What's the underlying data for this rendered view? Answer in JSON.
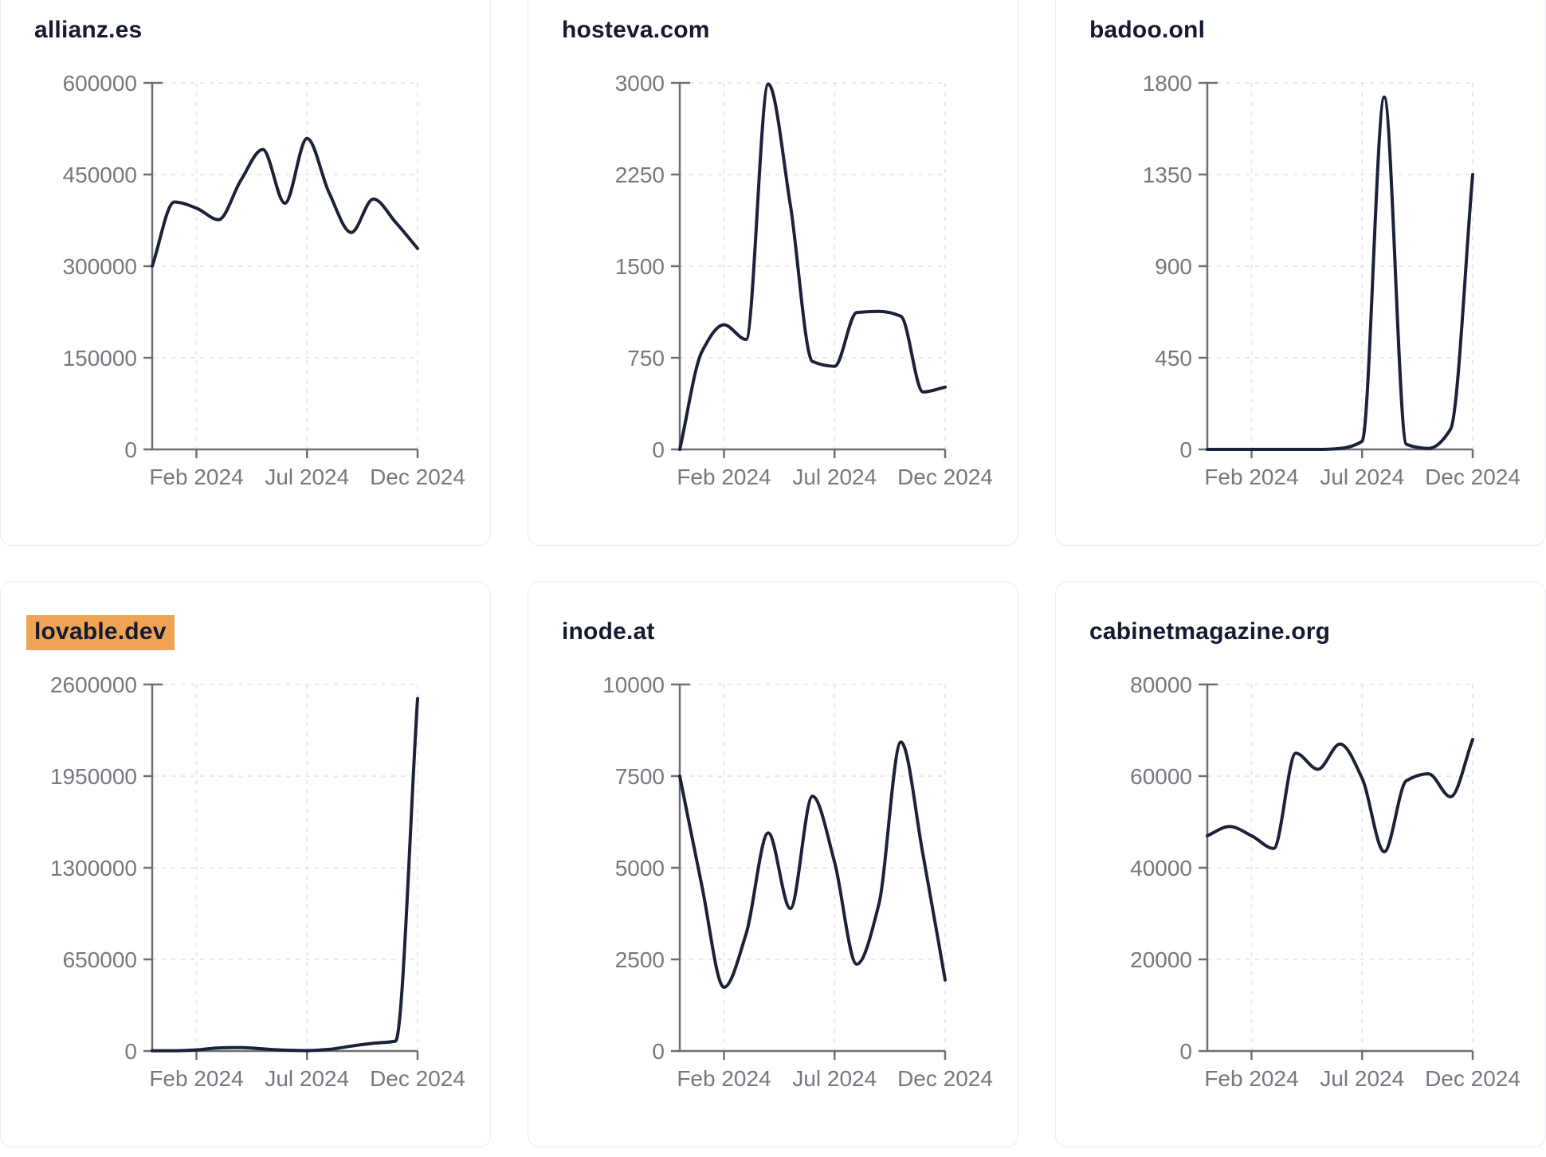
{
  "page": {
    "background_color": "#ffffff",
    "layout": "3x2 grid of domain traffic trend cards, cropped at top, sides and bottom"
  },
  "style": {
    "line_color": "#1a2138",
    "axis_color": "#6b6f77",
    "tick_label_color": "#75787f",
    "grid_color": "#e8e9ed",
    "title_color": "#141b31",
    "card_border_color": "#e9ecf2",
    "highlight_color": "#f0a355"
  },
  "x_axis": {
    "tick_labels": [
      "Feb 2024",
      "Jul 2024",
      "Dec 2024"
    ],
    "tick_month_index": [
      2,
      7,
      12
    ],
    "months": [
      "Dec 2023",
      "Jan 2024",
      "Feb 2024",
      "Mar 2024",
      "Apr 2024",
      "May 2024",
      "Jun 2024",
      "Jul 2024",
      "Aug 2024",
      "Sep 2024",
      "Oct 2024",
      "Nov 2024",
      "Dec 2024"
    ]
  },
  "chart_data": [
    {
      "type": "line",
      "title": "allianz.es",
      "title_highlighted": false,
      "x": [
        "Dec 2023",
        "Jan 2024",
        "Feb 2024",
        "Mar 2024",
        "Apr 2024",
        "May 2024",
        "Jun 2024",
        "Jul 2024",
        "Aug 2024",
        "Sep 2024",
        "Oct 2024",
        "Nov 2024",
        "Dec 2024"
      ],
      "x_tick_labels": [
        "Feb 2024",
        "Jul 2024",
        "Dec 2024"
      ],
      "y_ticks": [
        0,
        150000,
        300000,
        450000,
        600000
      ],
      "y_max": 600000,
      "values": [
        300000,
        405000,
        395000,
        376000,
        440000,
        491000,
        403000,
        509000,
        420000,
        355000,
        410000,
        372000,
        329000
      ],
      "grid": true,
      "legend": "none"
    },
    {
      "type": "line",
      "title": "hosteva.com",
      "title_highlighted": false,
      "x": [
        "Dec 2023",
        "Jan 2024",
        "Feb 2024",
        "Mar 2024",
        "Apr 2024",
        "May 2024",
        "Jun 2024",
        "Jul 2024",
        "Aug 2024",
        "Sep 2024",
        "Oct 2024",
        "Nov 2024",
        "Dec 2024"
      ],
      "x_tick_labels": [
        "Feb 2024",
        "Jul 2024",
        "Dec 2024"
      ],
      "y_ticks": [
        0,
        750,
        1500,
        2250,
        3000
      ],
      "y_max": 3000,
      "values": [
        0,
        800,
        1020,
        900,
        2990,
        2000,
        720,
        680,
        1120,
        1130,
        1090,
        470,
        510
      ],
      "grid": true,
      "legend": "none"
    },
    {
      "type": "line",
      "title": "badoo.onl",
      "title_highlighted": false,
      "x": [
        "Dec 2023",
        "Jan 2024",
        "Feb 2024",
        "Mar 2024",
        "Apr 2024",
        "May 2024",
        "Jun 2024",
        "Jul 2024",
        "Aug 2024",
        "Sep 2024",
        "Oct 2024",
        "Nov 2024",
        "Dec 2024"
      ],
      "x_tick_labels": [
        "Feb 2024",
        "Jul 2024",
        "Dec 2024"
      ],
      "y_ticks": [
        0,
        450,
        900,
        1350,
        1800
      ],
      "y_max": 1800,
      "values": [
        0,
        0,
        0,
        0,
        0,
        0,
        5,
        40,
        1730,
        25,
        5,
        100,
        1350
      ],
      "grid": true,
      "legend": "none"
    },
    {
      "type": "line",
      "title": "lovable.dev",
      "title_highlighted": true,
      "x": [
        "Dec 2023",
        "Jan 2024",
        "Feb 2024",
        "Mar 2024",
        "Apr 2024",
        "May 2024",
        "Jun 2024",
        "Jul 2024",
        "Aug 2024",
        "Sep 2024",
        "Oct 2024",
        "Nov 2024",
        "Dec 2024"
      ],
      "x_tick_labels": [
        "Feb 2024",
        "Jul 2024",
        "Dec 2024"
      ],
      "y_ticks": [
        0,
        650000,
        1300000,
        1950000,
        2600000
      ],
      "y_max": 2600000,
      "values": [
        2000,
        2000,
        8000,
        22000,
        25000,
        15000,
        6000,
        3000,
        12000,
        35000,
        55000,
        70000,
        2500000
      ],
      "grid": true,
      "legend": "none"
    },
    {
      "type": "line",
      "title": "inode.at",
      "title_highlighted": false,
      "x": [
        "Dec 2023",
        "Jan 2024",
        "Feb 2024",
        "Mar 2024",
        "Apr 2024",
        "May 2024",
        "Jun 2024",
        "Jul 2024",
        "Aug 2024",
        "Sep 2024",
        "Oct 2024",
        "Nov 2024",
        "Dec 2024"
      ],
      "x_tick_labels": [
        "Feb 2024",
        "Jul 2024",
        "Dec 2024"
      ],
      "y_ticks": [
        0,
        2500,
        5000,
        7500,
        10000
      ],
      "y_max": 10000,
      "values": [
        7500,
        4500,
        1740,
        3200,
        5950,
        3890,
        6950,
        5150,
        2370,
        4000,
        8430,
        5350,
        1940
      ],
      "grid": true,
      "legend": "none"
    },
    {
      "type": "line",
      "title": "cabinetmagazine.org",
      "title_highlighted": false,
      "x": [
        "Dec 2023",
        "Jan 2024",
        "Feb 2024",
        "Mar 2024",
        "Apr 2024",
        "May 2024",
        "Jun 2024",
        "Jul 2024",
        "Aug 2024",
        "Sep 2024",
        "Oct 2024",
        "Nov 2024",
        "Dec 2024"
      ],
      "x_tick_labels": [
        "Feb 2024",
        "Jul 2024",
        "Dec 2024"
      ],
      "y_ticks": [
        0,
        20000,
        40000,
        60000,
        80000
      ],
      "y_max": 80000,
      "values": [
        47000,
        49000,
        47000,
        44200,
        65000,
        61500,
        67000,
        59500,
        43500,
        59000,
        60500,
        55500,
        68000
      ],
      "grid": true,
      "legend": "none"
    }
  ]
}
